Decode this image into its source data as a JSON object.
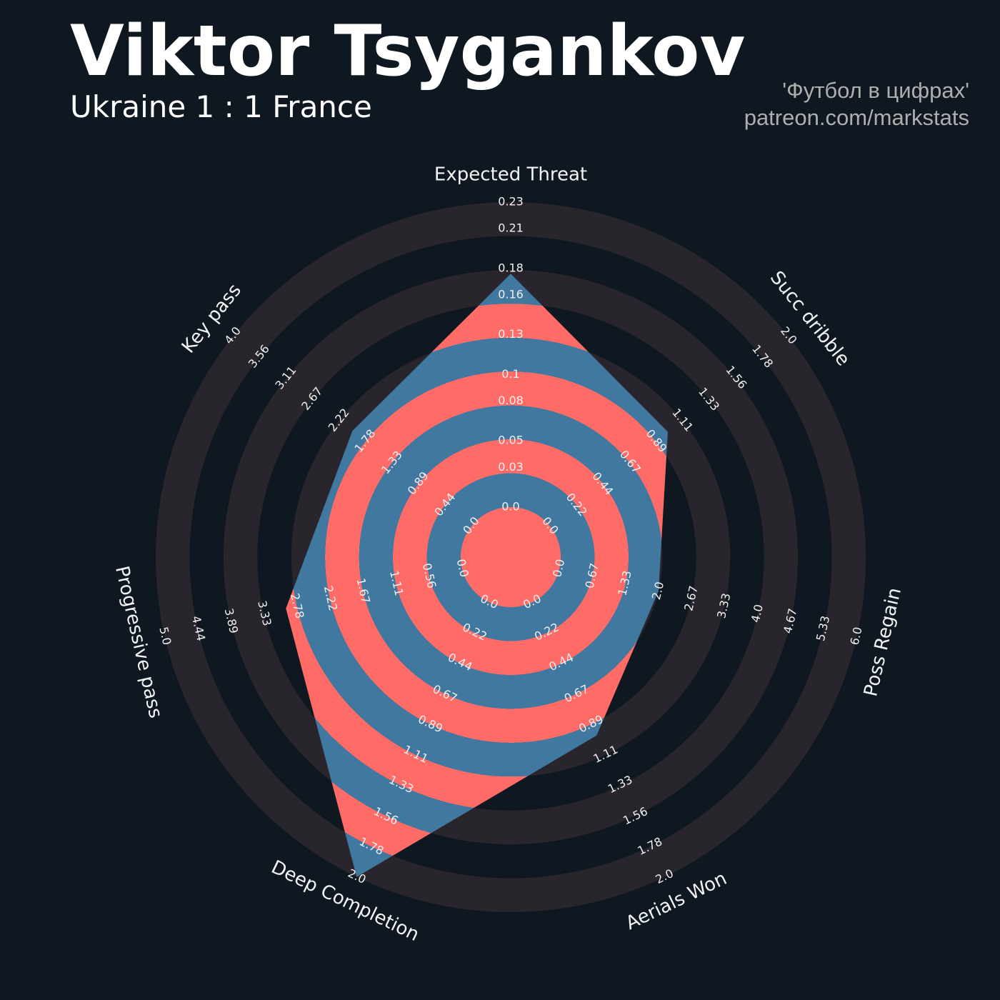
{
  "chart_data": {
    "type": "radar",
    "title": "Viktor Tsygankov",
    "subtitle": "Ukraine 1 : 1 France",
    "annotations": [
      "'Футбол в цифрах'",
      "patreon.com/markstats"
    ],
    "categories": [
      "Expected Threat",
      "Succ dribble",
      "Poss Regain",
      "Aerials Won",
      "Deep Completion",
      "Progressive pass",
      "Key pass"
    ],
    "values": [
      0.176,
      0.99,
      2.0,
      0.97,
      2.0,
      2.96,
      2.0
    ],
    "colors": [
      "#ff6b66",
      "#41789f"
    ],
    "rlims": [
      [
        0,
        0.23
      ],
      [
        0,
        2
      ],
      [
        0,
        6
      ],
      [
        0,
        2
      ],
      [
        0,
        2
      ],
      [
        0,
        5
      ],
      [
        0,
        4
      ]
    ],
    "rticks": [
      [
        {
          "value": 0,
          "label": "0.0"
        },
        0.03,
        0.05,
        0.08,
        0.1,
        0.13,
        0.16,
        0.18,
        0.21,
        0.23
      ],
      [
        {
          "value": 0,
          "label": "0.0"
        },
        0.22,
        0.44,
        0.67,
        0.89,
        1.11,
        1.33,
        1.56,
        1.78,
        {
          "value": 2,
          "label": "2.0"
        }
      ],
      [
        {
          "value": 0,
          "label": "0.0"
        },
        0.67,
        1.33,
        {
          "value": 2,
          "label": "2.0"
        },
        2.67,
        3.33,
        {
          "value": 4,
          "label": "4.0"
        },
        4.67,
        5.33,
        {
          "value": 6,
          "label": "6.0"
        }
      ],
      [
        {
          "value": 0,
          "label": "0.0"
        },
        0.22,
        0.44,
        0.67,
        0.89,
        1.11,
        1.33,
        1.56,
        1.78,
        {
          "value": 2,
          "label": "2.0"
        }
      ],
      [
        {
          "value": 0,
          "label": "0.0"
        },
        0.22,
        0.44,
        0.67,
        0.89,
        1.11,
        1.33,
        1.56,
        1.78,
        {
          "value": 2,
          "label": "2.0"
        }
      ],
      [
        {
          "value": 0,
          "label": "0.0"
        },
        0.56,
        1.11,
        1.67,
        2.22,
        2.78,
        3.33,
        3.89,
        4.44,
        {
          "value": 5,
          "label": "5.0"
        }
      ],
      [
        {
          "value": 0,
          "label": "0.0"
        },
        0.44,
        0.89,
        1.33,
        1.78,
        2.22,
        2.67,
        3.11,
        3.56,
        {
          "value": 4,
          "label": "4.0"
        }
      ]
    ]
  }
}
